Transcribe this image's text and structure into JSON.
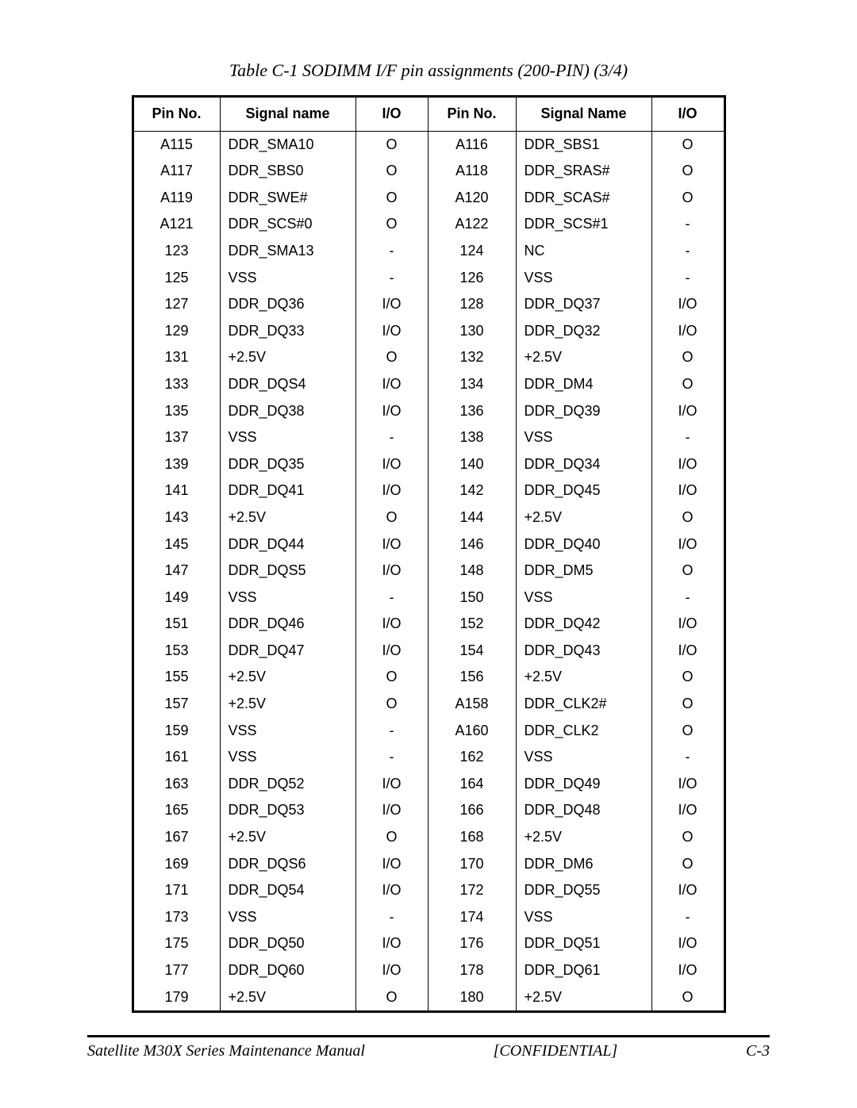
{
  "caption": "Table C-1  SODIMM I/F pin assignments (200-PIN) (3/4)",
  "table": {
    "headers": [
      "Pin No.",
      "Signal name",
      "I/O",
      "Pin No.",
      "Signal Name",
      "I/O"
    ],
    "rows": [
      [
        "A115",
        "DDR_SMA10",
        "O",
        "A116",
        "DDR_SBS1",
        "O"
      ],
      [
        "A117",
        "DDR_SBS0",
        "O",
        "A118",
        "DDR_SRAS#",
        "O"
      ],
      [
        "A119",
        "DDR_SWE#",
        "O",
        "A120",
        "DDR_SCAS#",
        "O"
      ],
      [
        "A121",
        "DDR_SCS#0",
        "O",
        "A122",
        "DDR_SCS#1",
        "-"
      ],
      [
        "123",
        "DDR_SMA13",
        "-",
        "124",
        "NC",
        "-"
      ],
      [
        "125",
        "VSS",
        "-",
        "126",
        "VSS",
        "-"
      ],
      [
        "127",
        "DDR_DQ36",
        "I/O",
        "128",
        "DDR_DQ37",
        "I/O"
      ],
      [
        "129",
        "DDR_DQ33",
        "I/O",
        "130",
        "DDR_DQ32",
        "I/O"
      ],
      [
        "131",
        "+2.5V",
        "O",
        "132",
        "+2.5V",
        "O"
      ],
      [
        "133",
        "DDR_DQS4",
        "I/O",
        "134",
        "DDR_DM4",
        "O"
      ],
      [
        "135",
        "DDR_DQ38",
        "I/O",
        "136",
        "DDR_DQ39",
        "I/O"
      ],
      [
        "137",
        "VSS",
        "-",
        "138",
        "VSS",
        "-"
      ],
      [
        "139",
        "DDR_DQ35",
        "I/O",
        "140",
        "DDR_DQ34",
        "I/O"
      ],
      [
        "141",
        "DDR_DQ41",
        "I/O",
        "142",
        "DDR_DQ45",
        "I/O"
      ],
      [
        "143",
        "+2.5V",
        "O",
        "144",
        "+2.5V",
        "O"
      ],
      [
        "145",
        "DDR_DQ44",
        "I/O",
        "146",
        "DDR_DQ40",
        "I/O"
      ],
      [
        "147",
        "DDR_DQS5",
        "I/O",
        "148",
        "DDR_DM5",
        "O"
      ],
      [
        "149",
        "VSS",
        "-",
        "150",
        "VSS",
        "-"
      ],
      [
        "151",
        "DDR_DQ46",
        "I/O",
        "152",
        "DDR_DQ42",
        "I/O"
      ],
      [
        "153",
        "DDR_DQ47",
        "I/O",
        "154",
        "DDR_DQ43",
        "I/O"
      ],
      [
        "155",
        "+2.5V",
        "O",
        "156",
        "+2.5V",
        "O"
      ],
      [
        "157",
        "+2.5V",
        "O",
        "A158",
        "DDR_CLK2#",
        "O"
      ],
      [
        "159",
        "VSS",
        "-",
        "A160",
        "DDR_CLK2",
        "O"
      ],
      [
        "161",
        "VSS",
        "-",
        "162",
        "VSS",
        "-"
      ],
      [
        "163",
        "DDR_DQ52",
        "I/O",
        "164",
        "DDR_DQ49",
        "I/O"
      ],
      [
        "165",
        "DDR_DQ53",
        "I/O",
        "166",
        "DDR_DQ48",
        "I/O"
      ],
      [
        "167",
        "+2.5V",
        "O",
        "168",
        "+2.5V",
        "O"
      ],
      [
        "169",
        "DDR_DQS6",
        "I/O",
        "170",
        "DDR_DM6",
        "O"
      ],
      [
        "171",
        "DDR_DQ54",
        "I/O",
        "172",
        "DDR_DQ55",
        "I/O"
      ],
      [
        "173",
        "VSS",
        "-",
        "174",
        "VSS",
        "-"
      ],
      [
        "175",
        "DDR_DQ50",
        "I/O",
        "176",
        "DDR_DQ51",
        "I/O"
      ],
      [
        "177",
        "DDR_DQ60",
        "I/O",
        "178",
        "DDR_DQ61",
        "I/O"
      ],
      [
        "179",
        "+2.5V",
        "O",
        "180",
        "+2.5V",
        "O"
      ]
    ]
  },
  "footer": {
    "left": "Satellite M30X Series Maintenance Manual",
    "center": "[CONFIDENTIAL]",
    "right": "C-3"
  }
}
